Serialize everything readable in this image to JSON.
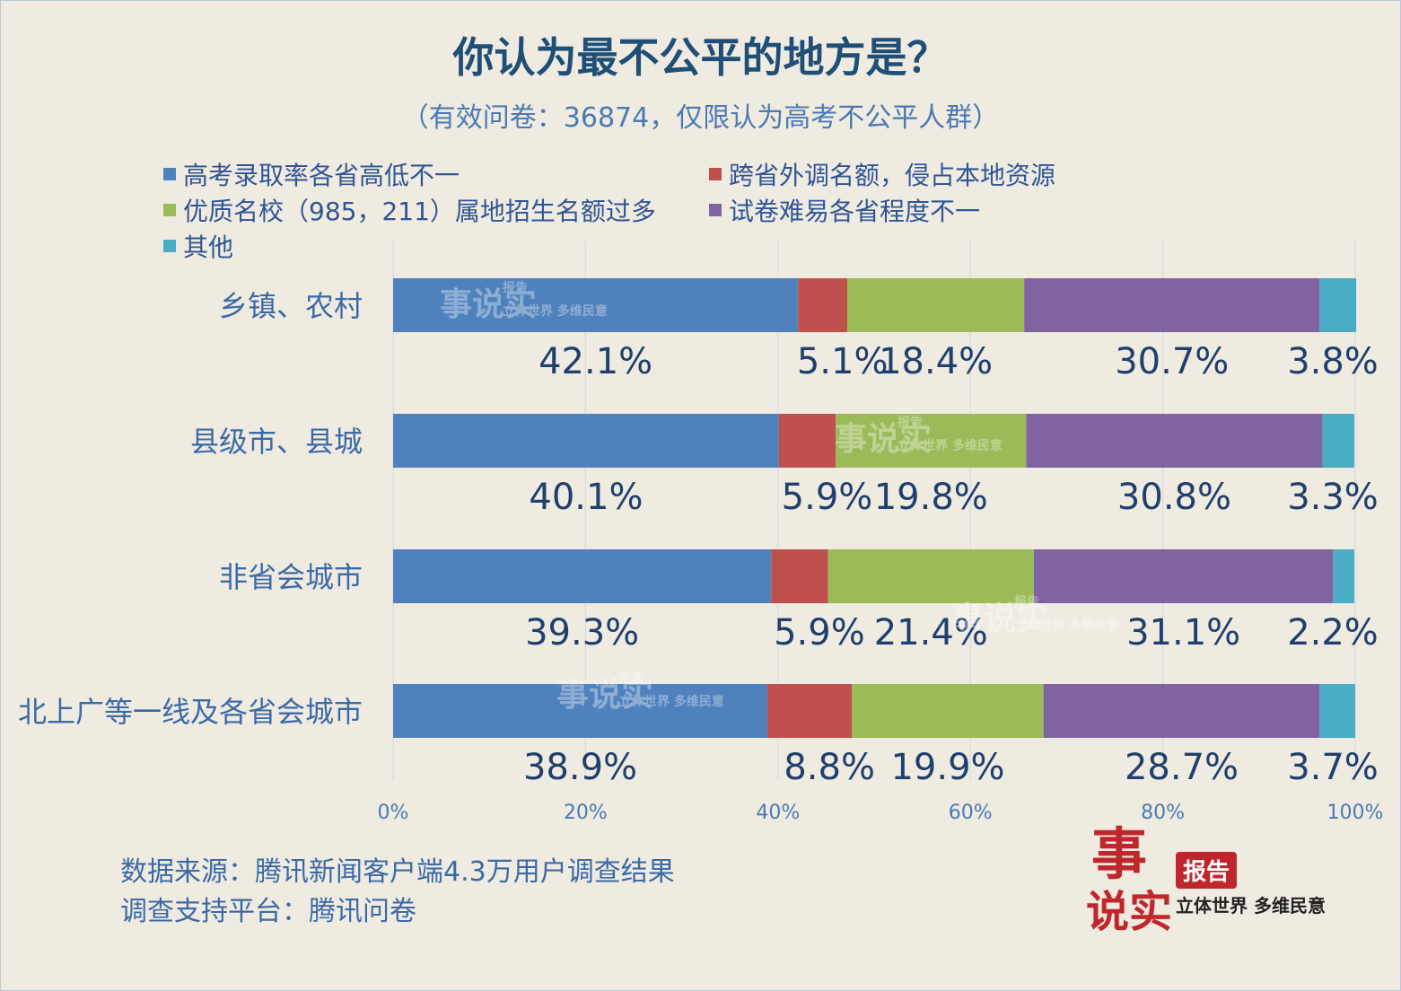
{
  "title": "你认为最不公平的地方是？",
  "subtitle": "（有效问卷：36874，仅限认为高考不公平人群）",
  "source_lines": [
    "数据来源：腾讯新闻客户端4.3万用户调查结果",
    "调查支持平台：腾讯问卷"
  ],
  "logo": {
    "mark_a": "事",
    "mark_b": "说实",
    "badge": "报告",
    "slogan": "立体世界 多维民意"
  },
  "watermark": {
    "mark": "事说实",
    "badge": "报告",
    "slogan": "立体世界 多维民意"
  },
  "chart_data": {
    "type": "bar",
    "orientation": "horizontal",
    "stacked": true,
    "percent": true,
    "title": "你认为最不公平的地方是？",
    "subtitle": "（有效问卷：36874，仅限认为高考不公平人群）",
    "categories": [
      "乡镇、农村",
      "县级市、县城",
      "非省会城市",
      "北上广等一线及各省会城市"
    ],
    "series": [
      {
        "name": "高考录取率各省高低不一",
        "color": "#4f81bd",
        "values": [
          42.1,
          40.1,
          39.3,
          38.9
        ]
      },
      {
        "name": "跨省外调名额，侵占本地资源",
        "color": "#c0504d",
        "values": [
          5.1,
          5.9,
          5.9,
          8.8
        ]
      },
      {
        "name": "优质名校（985，211）属地招生名额过多",
        "color": "#9bbb59",
        "values": [
          18.4,
          19.8,
          21.4,
          19.9
        ]
      },
      {
        "name": "试卷难易各省程度不一",
        "color": "#8064a2",
        "values": [
          30.7,
          30.8,
          31.1,
          28.7
        ]
      },
      {
        "name": "其他",
        "color": "#4bacc6",
        "values": [
          3.8,
          3.3,
          2.2,
          3.7
        ]
      }
    ],
    "data_labels": [
      [
        "42.1%",
        "5.1%",
        "18.4%",
        "30.7%",
        "3.8%"
      ],
      [
        "40.1%",
        "5.9%",
        "19.8%",
        "30.8%",
        "3.3%"
      ],
      [
        "39.3%",
        "5.9%",
        "21.4%",
        "31.1%",
        "2.2%"
      ],
      [
        "38.9%",
        "8.8%",
        "19.9%",
        "28.7%",
        "3.7%"
      ]
    ],
    "x_ticks": [
      "0%",
      "20%",
      "40%",
      "60%",
      "80%",
      "100%"
    ],
    "xlim": [
      0,
      100
    ],
    "grid": true,
    "legend_position": "top"
  }
}
